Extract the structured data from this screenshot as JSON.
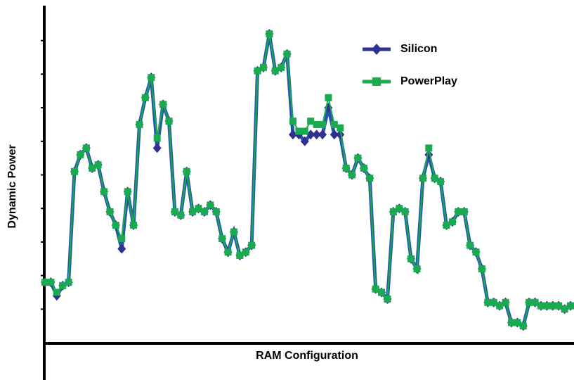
{
  "chart_data": {
    "type": "line",
    "xlabel": "RAM Configuration",
    "ylabel": "Dynamic Power",
    "ylim": [
      0,
      100
    ],
    "yticks": [
      10,
      20,
      30,
      40,
      50,
      60,
      70,
      80,
      90
    ],
    "legend": "upper right",
    "series": [
      {
        "name": "Silicon",
        "color": "#2457a8",
        "marker": "diamond",
        "values": [
          18,
          18,
          14,
          17,
          18,
          51,
          56,
          58,
          52,
          53,
          45,
          39,
          35,
          28,
          45,
          35,
          65,
          73,
          79,
          58,
          71,
          66,
          39,
          38,
          51,
          39,
          40,
          39,
          41,
          39,
          31,
          27,
          33,
          26,
          27,
          29,
          81,
          82,
          92,
          81,
          82,
          86,
          62,
          62,
          60,
          62,
          62,
          62,
          70,
          62,
          62,
          52,
          50,
          55,
          52,
          49,
          16,
          15,
          13,
          39,
          40,
          39,
          25,
          22,
          49,
          56,
          49,
          48,
          35,
          36,
          39,
          39,
          29,
          27,
          22,
          12,
          12,
          11,
          12,
          6,
          6,
          5,
          12,
          12,
          11,
          11,
          11,
          11,
          10,
          11
        ]
      },
      {
        "name": "PowerPlay",
        "color": "#1aaa50",
        "marker": "square",
        "values": [
          18,
          18,
          15,
          17,
          18,
          51,
          56,
          58,
          52,
          53,
          45,
          39,
          35,
          31,
          45,
          35,
          65,
          73,
          79,
          61,
          71,
          66,
          39,
          38,
          51,
          39,
          40,
          39,
          41,
          39,
          31,
          27,
          33,
          26,
          27,
          29,
          81,
          82,
          92,
          81,
          82,
          86,
          66,
          63,
          63,
          66,
          65,
          65,
          73,
          65,
          64,
          52,
          50,
          55,
          52,
          49,
          16,
          15,
          13,
          39,
          40,
          39,
          25,
          22,
          49,
          58,
          49,
          48,
          35,
          36,
          39,
          39,
          29,
          27,
          22,
          12,
          12,
          11,
          12,
          6,
          6,
          5,
          12,
          12,
          11,
          11,
          11,
          11,
          10,
          11
        ]
      }
    ]
  }
}
